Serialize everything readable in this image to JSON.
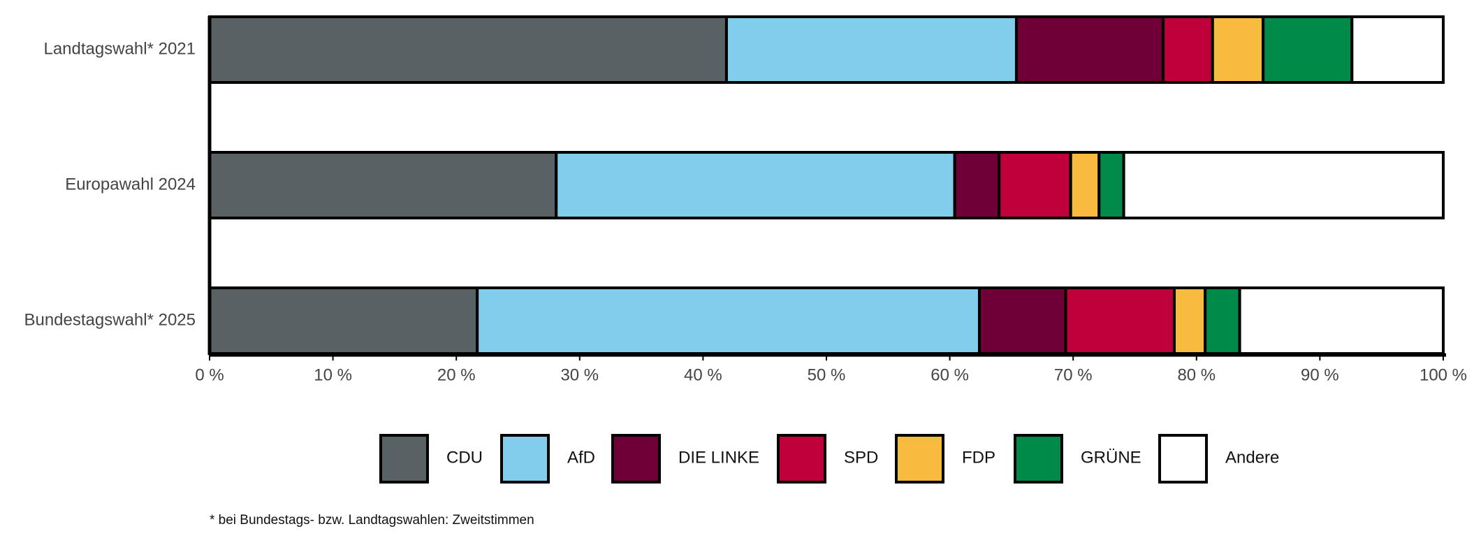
{
  "chart_data": {
    "type": "stacked-bar-horizontal",
    "categories": [
      "Landtagswahl* 2021",
      "Europawahl 2024",
      "Bundestagswahl* 2025"
    ],
    "series": [
      {
        "name": "CDU",
        "color": "#586163",
        "values": [
          41.9,
          28.1,
          21.7
        ]
      },
      {
        "name": "AfD",
        "color": "#82cdeb",
        "values": [
          23.5,
          32.3,
          40.7
        ]
      },
      {
        "name": "DIE LINKE",
        "color": "#6e0037",
        "values": [
          11.9,
          3.6,
          7.0
        ]
      },
      {
        "name": "SPD",
        "color": "#c0003a",
        "values": [
          4.0,
          5.8,
          8.8
        ]
      },
      {
        "name": "FDP",
        "color": "#f6bb3f",
        "values": [
          4.1,
          2.3,
          2.5
        ]
      },
      {
        "name": "GRÜNE",
        "color": "#008a4a",
        "values": [
          7.2,
          2.0,
          2.8
        ]
      },
      {
        "name": "Andere",
        "color": "#ffffff",
        "values": [
          7.4,
          25.9,
          16.5
        ]
      }
    ],
    "xlim": [
      0,
      100
    ],
    "xticks": [
      {
        "value": 0,
        "label": "0 %"
      },
      {
        "value": 10,
        "label": "10 %"
      },
      {
        "value": 20,
        "label": "20 %"
      },
      {
        "value": 30,
        "label": "30 %"
      },
      {
        "value": 40,
        "label": "40 %"
      },
      {
        "value": 50,
        "label": "50 %"
      },
      {
        "value": 60,
        "label": "60 %"
      },
      {
        "value": 70,
        "label": "70 %"
      },
      {
        "value": 80,
        "label": "80 %"
      },
      {
        "value": 90,
        "label": "90 %"
      },
      {
        "value": 100,
        "label": "100 %"
      }
    ],
    "legend": "bottom",
    "footnote": "* bei Bundestags- bzw. Landtagswahlen: Zweitstimmen"
  }
}
